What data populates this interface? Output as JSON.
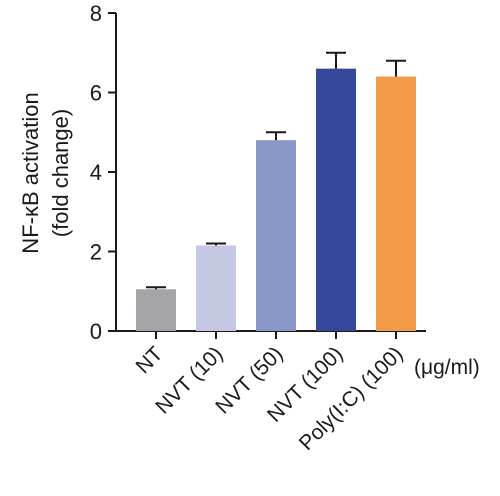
{
  "chart_data": {
    "type": "bar",
    "title": "",
    "ylabel_line1": "NF-κB activation",
    "ylabel_line2": "(fold change)",
    "xlabel": "",
    "unit": "(μg/ml)",
    "ylim": [
      0,
      8
    ],
    "yticks": [
      "0",
      "2",
      "4",
      "6",
      "8"
    ],
    "categories": [
      "NT",
      "NVT (10)",
      "NVT (50)",
      "NVT (100)",
      "Poly(I:C) (100)"
    ],
    "values": [
      1.05,
      2.15,
      4.8,
      6.6,
      6.4
    ],
    "errors": [
      0.05,
      0.05,
      0.2,
      0.4,
      0.4
    ],
    "colors": [
      "#a3a3a8",
      "#c4c8e3",
      "#8896c8",
      "#35479a",
      "#f39c47"
    ],
    "grid": false,
    "legend": "none"
  }
}
